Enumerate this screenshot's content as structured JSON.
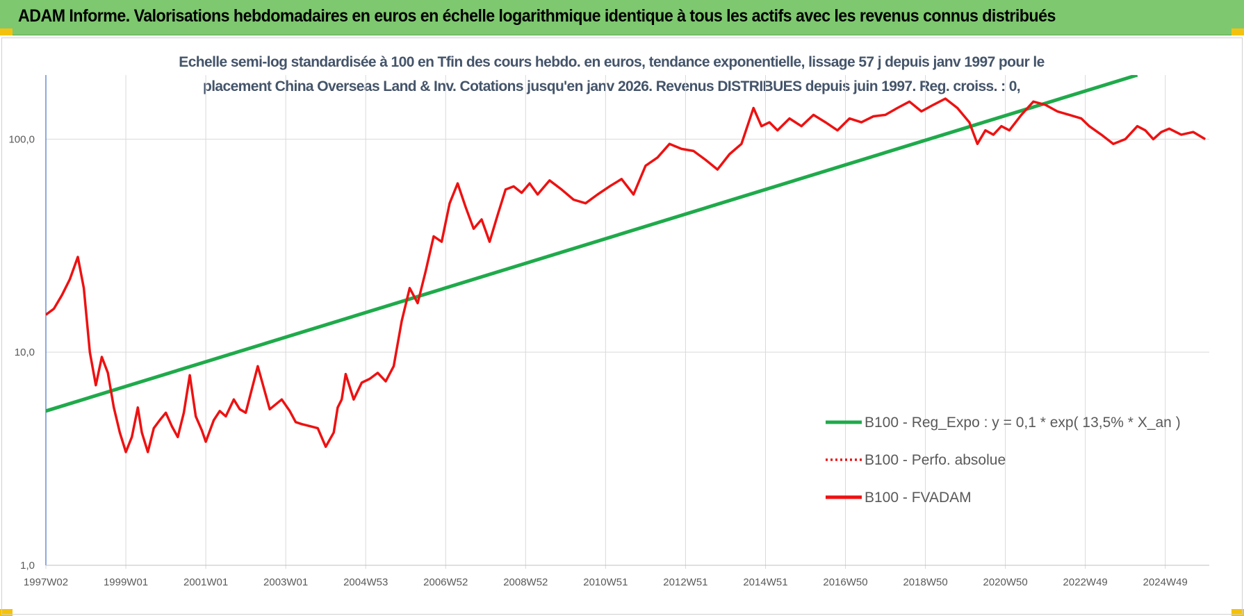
{
  "header": {
    "title": "ADAM Informe. Valorisations hebdomadaires en euros en échelle logarithmique identique à tous les actifs avec les revenus connus distribués"
  },
  "colors": {
    "banner": "#7ec86f",
    "regression": "#1faa4b",
    "fvadam": "#ee1111",
    "perf": "#ee1111",
    "grid": "#d9d9d9",
    "axis": "#4472c4"
  },
  "chart_data": {
    "type": "line",
    "title_line1": "Echelle semi-log standardisée à 100 en Tfin des cours hebdo. en euros, tendance exponentielle, lissage 57 j depuis janv 1997 pour le",
    "title_line2": "placement China Overseas Land & Inv. Cotations jusqu'en janv 2026. Revenus DISTRIBUES depuis juin 1997. Reg. croiss. : 0,",
    "y_scale": "log",
    "ylim": [
      1,
      200
    ],
    "y_ticks": [
      {
        "value": 1,
        "label": "1,0"
      },
      {
        "value": 10,
        "label": "10,0"
      },
      {
        "value": 100,
        "label": "100,0"
      }
    ],
    "x_range": [
      1997.0,
      2026.1
    ],
    "x_ticks": [
      {
        "x": 1997.0,
        "label": "1997W02"
      },
      {
        "x": 1999.0,
        "label": "1999W01"
      },
      {
        "x": 2001.0,
        "label": "2001W01"
      },
      {
        "x": 2003.0,
        "label": "2003W01"
      },
      {
        "x": 2005.0,
        "label": "2004W53"
      },
      {
        "x": 2007.0,
        "label": "2006W52"
      },
      {
        "x": 2009.0,
        "label": "2008W52"
      },
      {
        "x": 2011.0,
        "label": "2010W51"
      },
      {
        "x": 2013.0,
        "label": "2012W51"
      },
      {
        "x": 2015.0,
        "label": "2014W51"
      },
      {
        "x": 2017.0,
        "label": "2016W50"
      },
      {
        "x": 2019.0,
        "label": "2018W50"
      },
      {
        "x": 2021.0,
        "label": "2020W50"
      },
      {
        "x": 2023.0,
        "label": "2022W49"
      },
      {
        "x": 2025.0,
        "label": "2024W49"
      }
    ],
    "legend": [
      {
        "key": "regression",
        "label": "B100 - Reg_Expo : y = 0,1 * exp( 13,5% *  X_an )",
        "style": "solid"
      },
      {
        "key": "perf",
        "label": "B100 - Perfo. absolue",
        "style": "dotted"
      },
      {
        "key": "fvadam",
        "label": "B100 - FVADAM",
        "style": "solid"
      }
    ],
    "series": [
      {
        "name": "B100 - Reg_Expo",
        "x": [
          1997.0,
          2024.3
        ],
        "values": [
          5.3,
          200
        ]
      },
      {
        "name": "B100 - FVADAM",
        "x": [
          1997.0,
          1997.2,
          1997.4,
          1997.6,
          1997.8,
          1997.95,
          1998.1,
          1998.25,
          1998.4,
          1998.55,
          1998.7,
          1998.85,
          1999.0,
          1999.15,
          1999.3,
          1999.4,
          1999.55,
          1999.7,
          1999.85,
          2000.0,
          2000.15,
          2000.3,
          2000.45,
          2000.6,
          2000.75,
          2000.9,
          2001.0,
          2001.2,
          2001.35,
          2001.5,
          2001.7,
          2001.85,
          2002.0,
          2002.3,
          2002.6,
          2002.9,
          2003.1,
          2003.25,
          2003.4,
          2003.6,
          2003.8,
          2004.0,
          2004.2,
          2004.3,
          2004.4,
          2004.5,
          2004.7,
          2004.9,
          2005.1,
          2005.3,
          2005.5,
          2005.7,
          2005.9,
          2006.1,
          2006.3,
          2006.5,
          2006.7,
          2006.9,
          2007.1,
          2007.3,
          2007.5,
          2007.7,
          2007.9,
          2008.1,
          2008.3,
          2008.5,
          2008.7,
          2008.9,
          2009.1,
          2009.3,
          2009.6,
          2009.9,
          2010.2,
          2010.5,
          2010.8,
          2011.1,
          2011.4,
          2011.7,
          2012.0,
          2012.3,
          2012.6,
          2012.9,
          2013.2,
          2013.5,
          2013.8,
          2014.1,
          2014.4,
          2014.7,
          2014.9,
          2015.1,
          2015.3,
          2015.6,
          2015.9,
          2016.2,
          2016.5,
          2016.8,
          2017.1,
          2017.4,
          2017.7,
          2018.0,
          2018.3,
          2018.6,
          2018.9,
          2019.2,
          2019.5,
          2019.8,
          2020.1,
          2020.3,
          2020.5,
          2020.7,
          2020.9,
          2021.1,
          2021.4,
          2021.7,
          2022.0,
          2022.3,
          2022.6,
          2022.9,
          2023.1,
          2023.4,
          2023.7,
          2024.0,
          2024.3,
          2024.5,
          2024.7,
          2024.9,
          2025.1,
          2025.4,
          2025.7,
          2026.0
        ],
        "values": [
          15,
          16,
          18.5,
          22,
          28,
          20,
          10,
          7,
          9.5,
          8,
          5.5,
          4.2,
          3.4,
          4,
          5.5,
          4.2,
          3.4,
          4.4,
          4.8,
          5.2,
          4.5,
          4,
          5.2,
          7.8,
          5,
          4.3,
          3.8,
          4.8,
          5.3,
          5,
          6,
          5.4,
          5.2,
          8.6,
          5.4,
          6,
          5.3,
          4.7,
          4.6,
          4.5,
          4.4,
          3.6,
          4.2,
          5.5,
          6,
          7.9,
          6,
          7.2,
          7.5,
          8,
          7.3,
          8.6,
          14,
          20,
          17,
          24,
          35,
          33,
          50,
          62,
          48,
          38,
          42,
          33,
          44,
          58,
          60,
          56,
          62,
          55,
          64,
          58,
          52,
          50,
          55,
          60,
          65,
          55,
          75,
          82,
          95,
          90,
          88,
          80,
          72,
          85,
          95,
          140,
          115,
          120,
          110,
          125,
          115,
          130,
          120,
          110,
          125,
          120,
          128,
          130,
          140,
          150,
          135,
          145,
          155,
          140,
          120,
          95,
          110,
          105,
          115,
          110,
          130,
          150,
          145,
          135,
          130,
          125,
          115,
          105,
          95,
          100,
          115,
          110,
          100,
          108,
          112,
          105,
          108,
          100
        ]
      }
    ]
  }
}
